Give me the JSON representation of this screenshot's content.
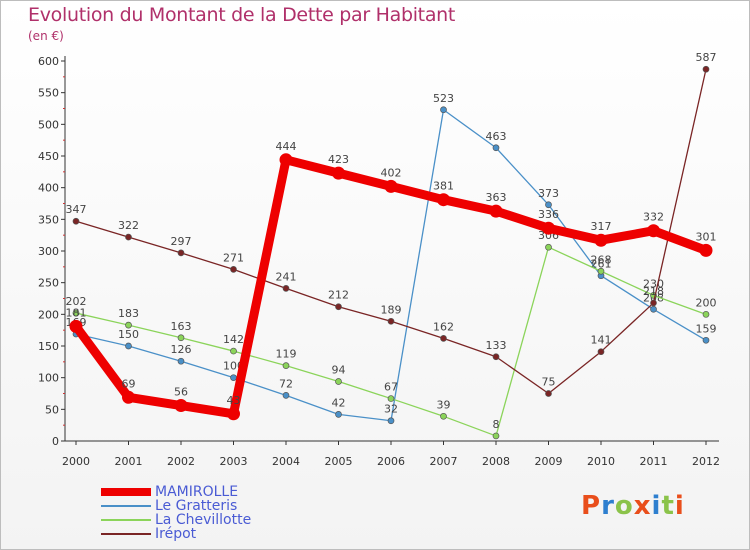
{
  "header": {
    "title": "Evolution du Montant de la Dette par Habitant",
    "subtitle": "(en €)"
  },
  "logo": {
    "text": "Proxiti",
    "letters": [
      "P",
      "r",
      "o",
      "x",
      "i",
      "t",
      "i"
    ],
    "colors": [
      "#e94e1b",
      "#2e7fcf",
      "#8bc34a",
      "#e94e1b",
      "#2e7fcf",
      "#8bc34a",
      "#e94e1b"
    ]
  },
  "chart_data": {
    "type": "line",
    "title": "Evolution du Montant de la Dette par Habitant",
    "ylabel": "(en €)",
    "xlabel": "",
    "categories": [
      "2000",
      "2001",
      "2002",
      "2003",
      "2004",
      "2005",
      "2006",
      "2007",
      "2008",
      "2009",
      "2010",
      "2011",
      "2012"
    ],
    "ylim": [
      0,
      600
    ],
    "yticks": [
      0,
      50,
      100,
      150,
      200,
      250,
      300,
      350,
      400,
      450,
      500,
      550,
      600
    ],
    "grid": false,
    "legend_position": "bottom-left",
    "series": [
      {
        "name": "MAMIROLLE",
        "color": "#ee0000",
        "values": [
          181,
          69,
          56,
          43,
          444,
          423,
          402,
          381,
          363,
          336,
          317,
          332,
          301
        ]
      },
      {
        "name": "Le Gratteris",
        "color": "#4a90c8",
        "values": [
          169,
          150,
          126,
          100,
          72,
          42,
          32,
          523,
          463,
          373,
          261,
          208,
          159
        ]
      },
      {
        "name": "La Chevillotte",
        "color": "#8bd45a",
        "values": [
          202,
          183,
          163,
          142,
          119,
          94,
          67,
          39,
          8,
          306,
          268,
          230,
          200
        ]
      },
      {
        "name": "Irépot",
        "color": "#7a2525",
        "values": [
          347,
          322,
          297,
          271,
          241,
          212,
          189,
          162,
          133,
          75,
          141,
          218,
          587
        ]
      }
    ]
  }
}
